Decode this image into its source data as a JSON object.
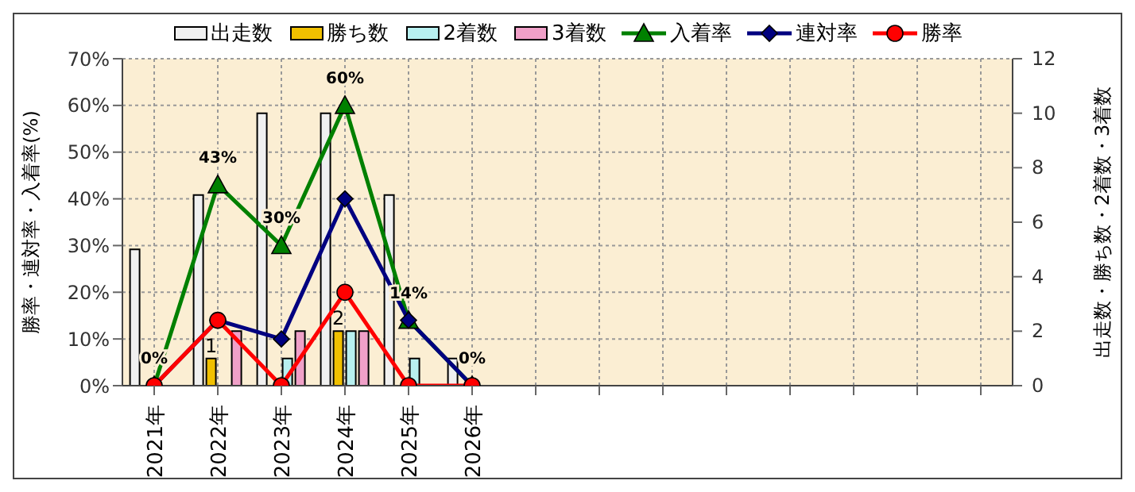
{
  "chart_data": {
    "type": "bar",
    "ylabel": "勝率・連対率・入着率(%)",
    "y2label": "出走数・勝ち数・2着数・3着数",
    "categories": [
      "2021年",
      "2022年",
      "2023年",
      "2024年",
      "2025年",
      "2026年",
      null,
      null,
      null,
      null,
      null,
      null,
      null,
      null
    ],
    "series": [
      {
        "name": "出走数",
        "type": "bar",
        "axis": "y2",
        "color": "#f0f0f0",
        "values": [
          5,
          7,
          10,
          10,
          7,
          1,
          null,
          null,
          null,
          null,
          null,
          null,
          null,
          null
        ]
      },
      {
        "name": "勝ち数",
        "type": "bar",
        "axis": "y2",
        "color": "#f0c000",
        "values": [
          0,
          1,
          0,
          2,
          0,
          0,
          null,
          null,
          null,
          null,
          null,
          null,
          null,
          null
        ],
        "value_labels": [
          null,
          "1",
          null,
          "2",
          null,
          null,
          null,
          null,
          null,
          null,
          null,
          null,
          null,
          null
        ]
      },
      {
        "name": "2着数",
        "type": "bar",
        "axis": "y2",
        "color": "#b8f0f0",
        "values": [
          0,
          0,
          1,
          2,
          1,
          0,
          null,
          null,
          null,
          null,
          null,
          null,
          null,
          null
        ]
      },
      {
        "name": "3着数",
        "type": "bar",
        "axis": "y2",
        "color": "#f0a0c8",
        "values": [
          0,
          2,
          2,
          2,
          0,
          0,
          null,
          null,
          null,
          null,
          null,
          null,
          null,
          null
        ]
      },
      {
        "name": "入着率",
        "type": "line",
        "marker": "triangle",
        "color": "#008000",
        "values": [
          0,
          43,
          30,
          60,
          14,
          0,
          null,
          null,
          null,
          null,
          null,
          null,
          null,
          null
        ],
        "value_labels": [
          "0%",
          "43%",
          "30%",
          "60%",
          "14%",
          "0%",
          null,
          null,
          null,
          null,
          null,
          null,
          null,
          null
        ]
      },
      {
        "name": "連対率",
        "type": "line",
        "marker": "diamond",
        "color": "#000080",
        "values": [
          0,
          14,
          10,
          40,
          14,
          0,
          null,
          null,
          null,
          null,
          null,
          null,
          null,
          null
        ]
      },
      {
        "name": "勝率",
        "type": "line",
        "marker": "circle",
        "color": "#ff0000",
        "values": [
          0,
          14,
          0,
          20,
          0,
          0,
          null,
          null,
          null,
          null,
          null,
          null,
          null,
          null
        ]
      }
    ],
    "ylim": [
      0,
      70
    ],
    "yticks": [
      {
        "value": 0,
        "label": "0%"
      },
      {
        "value": 10,
        "label": "10%"
      },
      {
        "value": 20,
        "label": "20%"
      },
      {
        "value": 30,
        "label": "30%"
      },
      {
        "value": 40,
        "label": "40%"
      },
      {
        "value": 50,
        "label": "50%"
      },
      {
        "value": 60,
        "label": "60%"
      },
      {
        "value": 70,
        "label": "70%"
      }
    ],
    "y2lim": [
      0,
      12
    ],
    "y2ticks": [
      0,
      2,
      4,
      6,
      8,
      10,
      12
    ],
    "grid": true,
    "legend": "top"
  }
}
